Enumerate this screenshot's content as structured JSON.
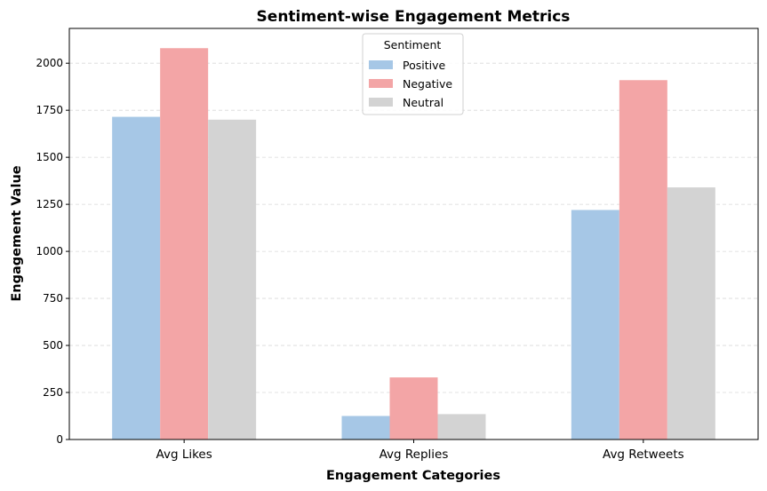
{
  "chart_data": {
    "type": "bar",
    "title": "Sentiment-wise Engagement Metrics",
    "xlabel": "Engagement Categories",
    "ylabel": "Engagement Value",
    "categories": [
      "Avg Likes",
      "Avg Replies",
      "Avg Retweets"
    ],
    "series": [
      {
        "name": "Positive",
        "values": [
          1715,
          125,
          1220
        ],
        "color": "#a6c7e6"
      },
      {
        "name": "Negative",
        "values": [
          2080,
          330,
          1910
        ],
        "color": "#f3a5a6"
      },
      {
        "name": "Neutral",
        "values": [
          1700,
          135,
          1340
        ],
        "color": "#d3d3d3"
      }
    ],
    "ylim": [
      0,
      2185
    ],
    "yticks": [
      0,
      250,
      500,
      750,
      1000,
      1250,
      1500,
      1750,
      2000
    ],
    "ytick_labels": [
      "0",
      "250",
      "500",
      "750",
      "1000",
      "1250",
      "1500",
      "1750",
      "2000"
    ],
    "grid": "y-dashed",
    "legend": {
      "title": "Sentiment",
      "placement": "top-center"
    }
  }
}
